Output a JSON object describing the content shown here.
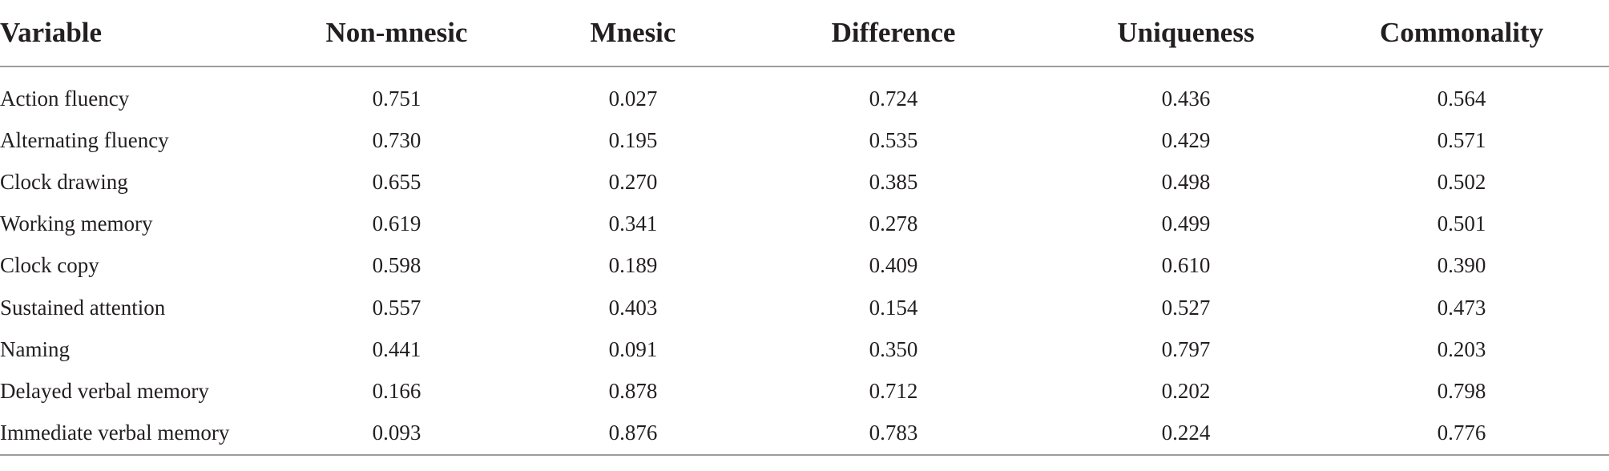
{
  "table": {
    "headers": [
      "Variable",
      "Non-mnesic",
      "Mnesic",
      "Difference",
      "Uniqueness",
      "Commonality"
    ],
    "rows": [
      [
        "Action fluency",
        "0.751",
        "0.027",
        "0.724",
        "0.436",
        "0.564"
      ],
      [
        "Alternating fluency",
        "0.730",
        "0.195",
        "0.535",
        "0.429",
        "0.571"
      ],
      [
        "Clock drawing",
        "0.655",
        "0.270",
        "0.385",
        "0.498",
        "0.502"
      ],
      [
        "Working memory",
        "0.619",
        "0.341",
        "0.278",
        "0.499",
        "0.501"
      ],
      [
        "Clock copy",
        "0.598",
        "0.189",
        "0.409",
        "0.610",
        "0.390"
      ],
      [
        "Sustained attention",
        "0.557",
        "0.403",
        "0.154",
        "0.527",
        "0.473"
      ],
      [
        "Naming",
        "0.441",
        "0.091",
        "0.350",
        "0.797",
        "0.203"
      ],
      [
        "Delayed verbal memory",
        "0.166",
        "0.878",
        "0.712",
        "0.202",
        "0.798"
      ],
      [
        "Immediate verbal memory",
        "0.093",
        "0.876",
        "0.783",
        "0.224",
        "0.776"
      ]
    ]
  }
}
